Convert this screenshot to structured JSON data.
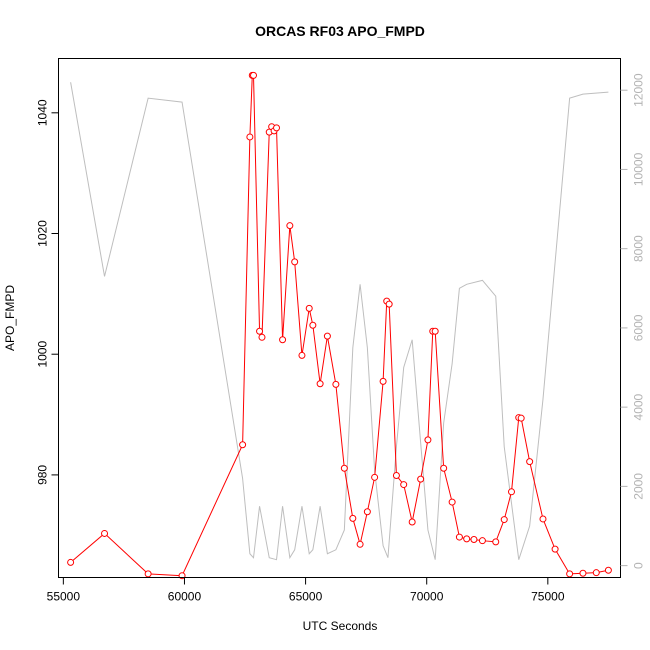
{
  "chart_data": {
    "type": "line",
    "title": "ORCAS RF03 APO_FMPD",
    "xlabel": "UTC Seconds",
    "ylabel": "APO_FMPD",
    "y2label": "",
    "xlim": [
      54800,
      78000
    ],
    "ylim": [
      963,
      1049
    ],
    "y2lim": [
      -300,
      12800
    ],
    "x_ticks": [
      55000,
      60000,
      65000,
      70000,
      75000
    ],
    "y_ticks": [
      980,
      1000,
      1020,
      1040
    ],
    "y2_ticks": [
      0,
      2000,
      4000,
      6000,
      8000,
      10000,
      12000
    ],
    "colors": {
      "primary": "#ff0000",
      "secondary": "#bebebe",
      "axis": "#000000",
      "axis_right": "#b3b3b3"
    },
    "series": [
      {
        "axis": "left",
        "color": "#ff0000",
        "marker": "open-circle",
        "x": [
          55300,
          56700,
          58500,
          59900,
          62400,
          62700,
          62800,
          62850,
          63100,
          63200,
          63500,
          63600,
          63700,
          63800,
          64050,
          64350,
          64550,
          64850,
          65150,
          65300,
          65600,
          65900,
          66250,
          66600,
          66950,
          67250,
          67550,
          67850,
          68200,
          68350,
          68450,
          68750,
          69050,
          69400,
          69750,
          70050,
          70250,
          70350,
          70700,
          71050,
          71350,
          71650,
          71950,
          72300,
          72850,
          73200,
          73500,
          73800,
          73900,
          74250,
          74800,
          75300,
          75900,
          76450,
          77000,
          77500
        ],
        "y": [
          965.5,
          970.3,
          963.6,
          963.3,
          985.0,
          1036.0,
          1046.2,
          1046.2,
          1003.8,
          1002.8,
          1036.8,
          1037.7,
          1037.0,
          1037.5,
          1002.4,
          1021.3,
          1015.3,
          999.8,
          1007.6,
          1004.8,
          995.1,
          1003.0,
          995.0,
          981.1,
          972.8,
          968.5,
          973.9,
          979.6,
          995.5,
          1008.8,
          1008.3,
          979.9,
          978.4,
          972.2,
          979.3,
          985.8,
          1003.8,
          1003.8,
          981.1,
          975.5,
          969.7,
          969.4,
          969.3,
          969.1,
          968.9,
          972.6,
          977.2,
          989.5,
          989.4,
          982.2,
          972.7,
          967.7,
          963.6,
          963.7,
          963.8,
          964.2
        ]
      },
      {
        "axis": "right",
        "color": "#bebebe",
        "marker": "none",
        "x": [
          55300,
          56700,
          58500,
          59900,
          62400,
          62700,
          62850,
          63100,
          63500,
          63800,
          64050,
          64350,
          64550,
          64850,
          65150,
          65300,
          65600,
          65900,
          66250,
          66600,
          66950,
          67250,
          67550,
          67850,
          68200,
          68400,
          68750,
          69050,
          69400,
          69750,
          70050,
          70350,
          70700,
          71050,
          71350,
          71650,
          72300,
          72850,
          73200,
          73800,
          74250,
          74800,
          75900,
          76450,
          77500
        ],
        "y": [
          12200,
          7300,
          11800,
          11700,
          2200,
          300,
          200,
          1500,
          200,
          150,
          1500,
          200,
          400,
          1500,
          300,
          400,
          1500,
          300,
          400,
          900,
          5500,
          7100,
          5500,
          2400,
          500,
          200,
          3000,
          5000,
          5700,
          3100,
          900,
          150,
          3600,
          5100,
          7000,
          7100,
          7200,
          6800,
          3000,
          150,
          1000,
          4200,
          11800,
          11900,
          11950
        ]
      }
    ]
  }
}
